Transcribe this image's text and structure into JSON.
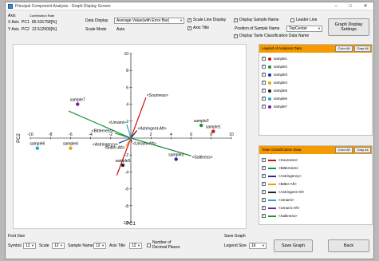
{
  "window": {
    "title": "Principal Component Analysis - Graph Display Screen",
    "minimize": "–",
    "maximize": "□",
    "close": "✕"
  },
  "axes_table": {
    "header_axis": "Axis",
    "header_rate": "Contribution Rate",
    "x_label": "X Axis",
    "x_pc": "PC1",
    "x_rate": "85.531758[%]",
    "y_label": "Y Axis",
    "y_pc": "PC2",
    "y_rate": "12.512909[%]"
  },
  "display": {
    "data_display_label": "Data Display",
    "data_display_value": "Average Value(with Error Bar)",
    "scale_mode_label": "Scale Mode",
    "scale_mode_value": "Auto"
  },
  "options": {
    "scale_line_display": "Scale Line Display",
    "axis_title": "Axis Title",
    "display_sample_name": "Display Sample Name",
    "leader_line": "Leader Line",
    "position_label": "Position of Sample Name",
    "position_value": "TopCenter",
    "display_taste_name": "Display Taste Classification Data Name"
  },
  "graph_display_settings": "Graph Display Settings",
  "legend_analyses": {
    "title": "Legend of Analyses Data",
    "color_all": "Color All",
    "gray_all": "Gray All",
    "items": [
      {
        "label": "sample1",
        "color": "#d01010"
      },
      {
        "label": "sample2",
        "color": "#1e8f3c"
      },
      {
        "label": "sample3",
        "color": "#1c2fa0"
      },
      {
        "label": "sample4",
        "color": "#f0a000"
      },
      {
        "label": "sample5",
        "color": "#222222"
      },
      {
        "label": "sample6",
        "color": "#1fa8d8"
      },
      {
        "label": "sample7",
        "color": "#7a1aa8"
      }
    ]
  },
  "legend_taste": {
    "title": "Taste Classification Data",
    "color_all": "Color All",
    "gray_all": "Gray All",
    "items": [
      {
        "label": "<Sourness>",
        "color": "#d01010"
      },
      {
        "label": "<Bitterness>",
        "color": "#1e8f3c"
      },
      {
        "label": "<Astringency>",
        "color": "#1c2fa0"
      },
      {
        "label": "<Bitter-Aft>",
        "color": "#f0a000"
      },
      {
        "label": "<Astringent-Aft>",
        "color": "#222222"
      },
      {
        "label": "<Umami>",
        "color": "#1fa8d8"
      },
      {
        "label": "<Umami-Aft>",
        "color": "#7a1aa8"
      },
      {
        "label": "<Saltiness>",
        "color": "#1e8f3c"
      }
    ]
  },
  "footer": {
    "font_size": "Font Size",
    "symbol_label": "Symbol",
    "symbol_value": "12",
    "scale_label": "Scale",
    "scale_value": "12",
    "sample_name_label": "Sample Name",
    "sample_name_value": "12",
    "axis_title_label": "Axis Title",
    "axis_title_value": "12",
    "decimal_places": "Number of Decimal Places",
    "save_graph_group": "Save Graph",
    "legend_size_label": "Legend Size",
    "legend_size_value": "16",
    "save_graph_button": "Save Graph",
    "back_button": "Back"
  },
  "chart_data": {
    "type": "scatter",
    "xlabel": "PC1",
    "ylabel": "PC2",
    "xlim": [
      -10,
      10
    ],
    "ylim": [
      -10,
      10
    ],
    "x_ticks": [
      -10,
      -8,
      -6,
      -4,
      -2,
      2,
      4,
      6,
      8,
      10
    ],
    "y_ticks": [
      -10,
      -8,
      -6,
      -4,
      -2,
      2,
      4,
      6,
      8,
      10
    ],
    "samples": [
      {
        "name": "sample1",
        "x": 8.2,
        "y": 0.8,
        "color": "#d01010"
      },
      {
        "name": "sample2",
        "x": 7.0,
        "y": 1.5,
        "color": "#1e8f3c"
      },
      {
        "name": "sample3",
        "x": 4.5,
        "y": -2.5,
        "color": "#1c2fa0"
      },
      {
        "name": "sample4",
        "x": -6.0,
        "y": -1.2,
        "color": "#f0a000"
      },
      {
        "name": "sample5",
        "x": -0.8,
        "y": -3.2,
        "color": "#222222"
      },
      {
        "name": "sample6",
        "x": -9.3,
        "y": -1.2,
        "color": "#1fa8d8"
      },
      {
        "name": "sample7",
        "x": -5.3,
        "y": 4.0,
        "color": "#7a1aa8"
      }
    ],
    "vectors": [
      {
        "name": "<Sourness>",
        "x": 1.5,
        "y": 4.8,
        "color": "#d01010"
      },
      {
        "name": "<Bitterness>",
        "x": -1.6,
        "y": 0.6,
        "color": "#1e8f3c"
      },
      {
        "name": "<Astringency>",
        "x": -1.2,
        "y": -0.6,
        "color": "#1c2fa0"
      },
      {
        "name": "<Bitter-Aft>",
        "x": -0.5,
        "y": -1.0,
        "color": "#f0a000"
      },
      {
        "name": "<Astringent-Aft>",
        "x": 0.6,
        "y": 0.9,
        "color": "#222222"
      },
      {
        "name": "<Umami>",
        "x": -0.4,
        "y": 1.6,
        "color": "#1fa8d8"
      },
      {
        "name": "<Umami-Aft>",
        "x": 0.1,
        "y": -0.5,
        "color": "#7a1aa8"
      },
      {
        "name": "<Saltiness>",
        "x": 6.0,
        "y": -2.1,
        "color": "#1e8f3c"
      }
    ],
    "extra_lines": [
      {
        "from": [
          -1.4,
          -4.4
        ],
        "to": [
          0,
          0
        ],
        "color": "#d01010"
      },
      {
        "from": [
          -6.2,
          3.2
        ],
        "to": [
          0,
          0
        ],
        "color": "#1e8f3c"
      }
    ]
  }
}
